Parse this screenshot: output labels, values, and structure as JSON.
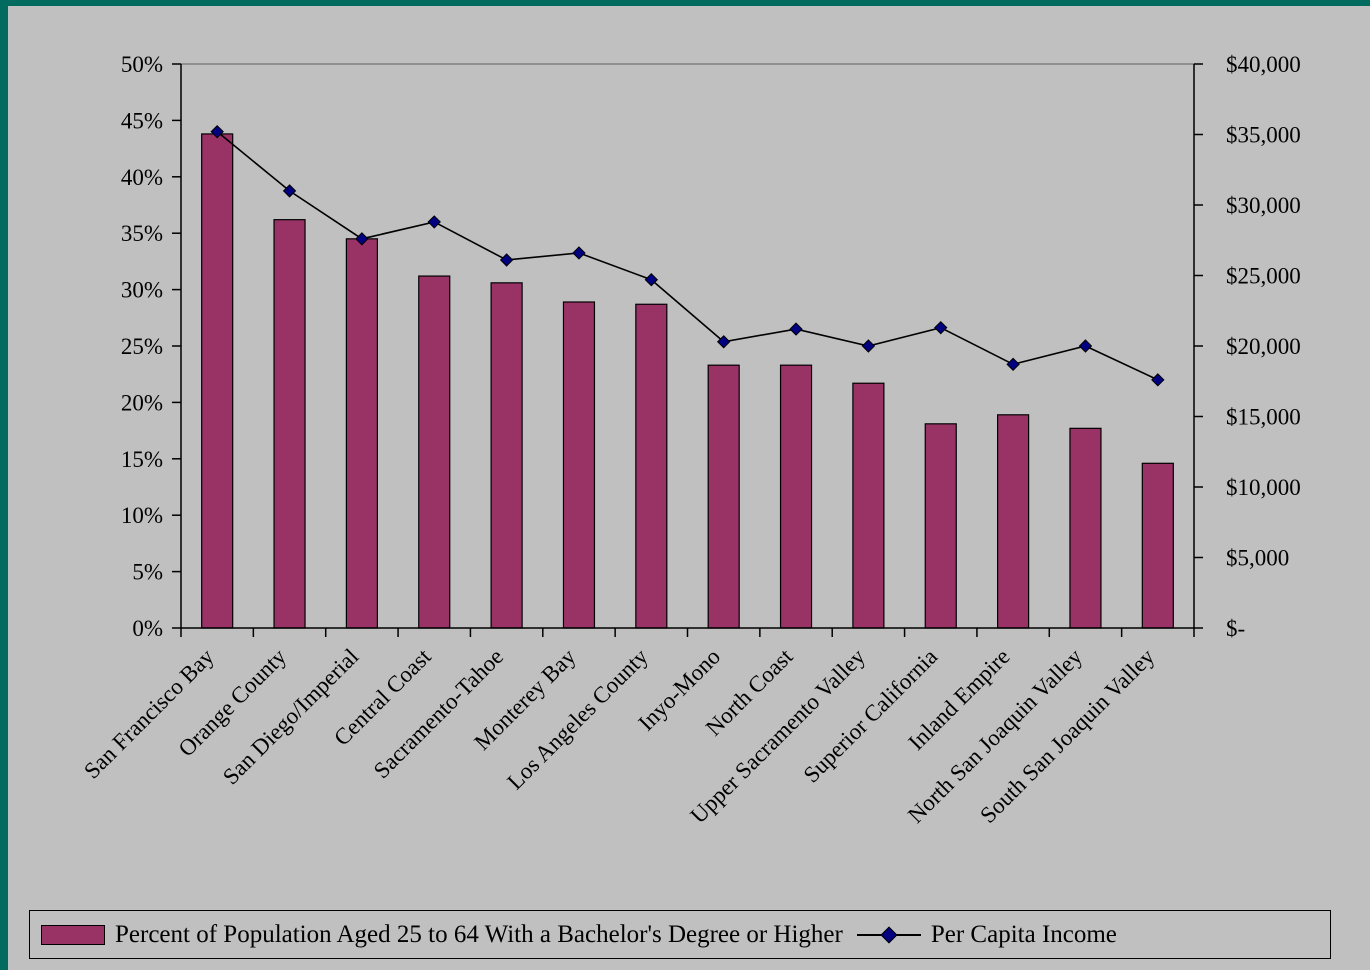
{
  "chart_data": {
    "type": "bar",
    "categories": [
      "San Francisco Bay",
      "Orange County",
      "San Diego/Imperial",
      "Central Coast",
      "Sacramento-Tahoe",
      "Monterey Bay",
      "Los Angeles County",
      "Inyo-Mono",
      "North Coast",
      "Upper Sacramento Valley",
      "Superior California",
      "Inland Empire",
      "North San Joaquin Valley",
      "South San Joaquin Valley"
    ],
    "series": [
      {
        "name": "Percent of Population Aged 25 to 64 With a Bachelor's Degree or Higher",
        "type": "bar",
        "axis": "left",
        "color": "#993366",
        "values": [
          43.8,
          36.2,
          34.5,
          31.2,
          30.6,
          28.9,
          28.7,
          23.3,
          23.3,
          21.7,
          18.1,
          18.9,
          17.7,
          14.6
        ]
      },
      {
        "name": "Per Capita Income",
        "type": "line",
        "axis": "right",
        "color": "#000080",
        "values": [
          35200,
          31000,
          27600,
          28800,
          26100,
          26600,
          24700,
          20300,
          21200,
          20000,
          21300,
          18700,
          20000,
          17600
        ]
      }
    ],
    "y_left": {
      "ylim": [
        0,
        50
      ],
      "ticks": [
        0,
        5,
        10,
        15,
        20,
        25,
        30,
        35,
        40,
        45,
        50
      ],
      "tick_labels": [
        "0%",
        "5%",
        "10%",
        "15%",
        "20%",
        "25%",
        "30%",
        "35%",
        "40%",
        "45%",
        "50%"
      ]
    },
    "y_right": {
      "ylim": [
        0,
        40000
      ],
      "ticks": [
        0,
        5000,
        10000,
        15000,
        20000,
        25000,
        30000,
        35000,
        40000
      ],
      "tick_labels": [
        "$-",
        "$5,000",
        "$10,000",
        "$15,000",
        "$20,000",
        "$25,000",
        "$30,000",
        "$35,000",
        "$40,000"
      ]
    },
    "grid": false,
    "legend_position": "bottom"
  },
  "legend": {
    "bar_label": "Percent of Population Aged 25 to 64 With a Bachelor's Degree or Higher",
    "line_label": "Per Capita Income"
  },
  "colors": {
    "background": "#c0c0c0",
    "border": "#006b5e",
    "bar": "#993366",
    "marker": "#000080"
  }
}
